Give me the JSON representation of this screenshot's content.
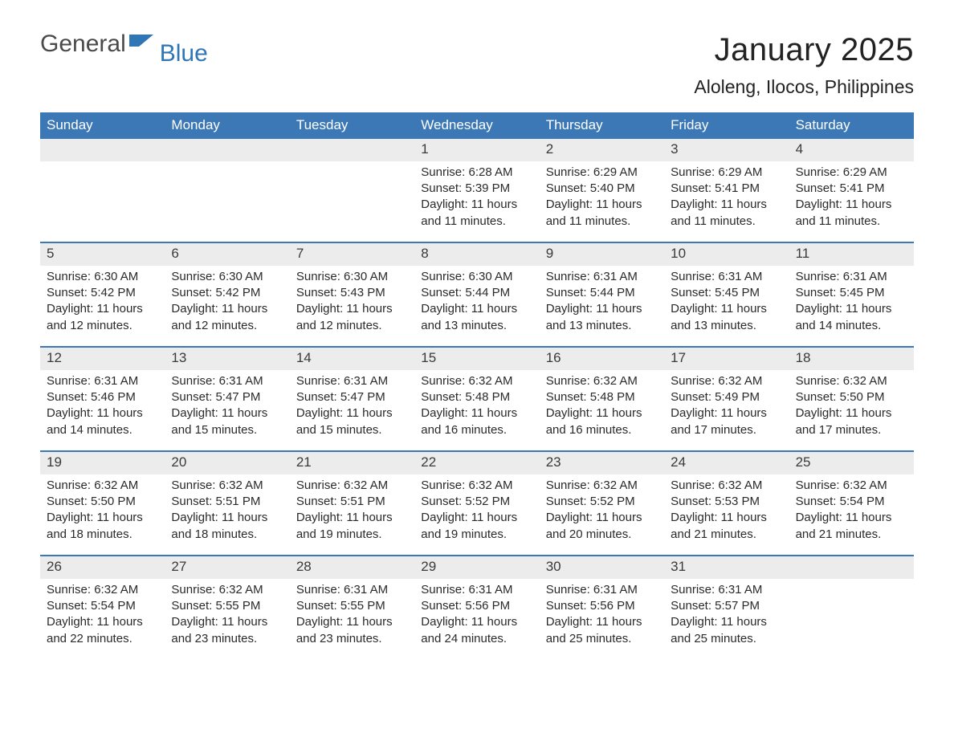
{
  "brand": {
    "word1": "General",
    "word2": "Blue",
    "flag_color": "#2f76b7"
  },
  "header": {
    "title": "January 2025",
    "location": "Aloleng, Ilocos, Philippines"
  },
  "colors": {
    "header_bg": "#3b78b5",
    "header_text": "#ffffff",
    "band_bg": "#ececec",
    "week_border": "#3b78b5",
    "body_text": "#2a2a2a",
    "page_bg": "#ffffff"
  },
  "typography": {
    "title_fontsize": 40,
    "location_fontsize": 23,
    "dow_fontsize": 17,
    "daynum_fontsize": 17,
    "body_fontsize": 15
  },
  "layout": {
    "columns": 7,
    "rows": 5
  },
  "days_of_week": [
    "Sunday",
    "Monday",
    "Tuesday",
    "Wednesday",
    "Thursday",
    "Friday",
    "Saturday"
  ],
  "weeks": [
    [
      {
        "n": "",
        "sr": "",
        "ss": "",
        "dl": ""
      },
      {
        "n": "",
        "sr": "",
        "ss": "",
        "dl": ""
      },
      {
        "n": "",
        "sr": "",
        "ss": "",
        "dl": ""
      },
      {
        "n": "1",
        "sr": "6:28 AM",
        "ss": "5:39 PM",
        "dl": "11 hours and 11 minutes."
      },
      {
        "n": "2",
        "sr": "6:29 AM",
        "ss": "5:40 PM",
        "dl": "11 hours and 11 minutes."
      },
      {
        "n": "3",
        "sr": "6:29 AM",
        "ss": "5:41 PM",
        "dl": "11 hours and 11 minutes."
      },
      {
        "n": "4",
        "sr": "6:29 AM",
        "ss": "5:41 PM",
        "dl": "11 hours and 11 minutes."
      }
    ],
    [
      {
        "n": "5",
        "sr": "6:30 AM",
        "ss": "5:42 PM",
        "dl": "11 hours and 12 minutes."
      },
      {
        "n": "6",
        "sr": "6:30 AM",
        "ss": "5:42 PM",
        "dl": "11 hours and 12 minutes."
      },
      {
        "n": "7",
        "sr": "6:30 AM",
        "ss": "5:43 PM",
        "dl": "11 hours and 12 minutes."
      },
      {
        "n": "8",
        "sr": "6:30 AM",
        "ss": "5:44 PM",
        "dl": "11 hours and 13 minutes."
      },
      {
        "n": "9",
        "sr": "6:31 AM",
        "ss": "5:44 PM",
        "dl": "11 hours and 13 minutes."
      },
      {
        "n": "10",
        "sr": "6:31 AM",
        "ss": "5:45 PM",
        "dl": "11 hours and 13 minutes."
      },
      {
        "n": "11",
        "sr": "6:31 AM",
        "ss": "5:45 PM",
        "dl": "11 hours and 14 minutes."
      }
    ],
    [
      {
        "n": "12",
        "sr": "6:31 AM",
        "ss": "5:46 PM",
        "dl": "11 hours and 14 minutes."
      },
      {
        "n": "13",
        "sr": "6:31 AM",
        "ss": "5:47 PM",
        "dl": "11 hours and 15 minutes."
      },
      {
        "n": "14",
        "sr": "6:31 AM",
        "ss": "5:47 PM",
        "dl": "11 hours and 15 minutes."
      },
      {
        "n": "15",
        "sr": "6:32 AM",
        "ss": "5:48 PM",
        "dl": "11 hours and 16 minutes."
      },
      {
        "n": "16",
        "sr": "6:32 AM",
        "ss": "5:48 PM",
        "dl": "11 hours and 16 minutes."
      },
      {
        "n": "17",
        "sr": "6:32 AM",
        "ss": "5:49 PM",
        "dl": "11 hours and 17 minutes."
      },
      {
        "n": "18",
        "sr": "6:32 AM",
        "ss": "5:50 PM",
        "dl": "11 hours and 17 minutes."
      }
    ],
    [
      {
        "n": "19",
        "sr": "6:32 AM",
        "ss": "5:50 PM",
        "dl": "11 hours and 18 minutes."
      },
      {
        "n": "20",
        "sr": "6:32 AM",
        "ss": "5:51 PM",
        "dl": "11 hours and 18 minutes."
      },
      {
        "n": "21",
        "sr": "6:32 AM",
        "ss": "5:51 PM",
        "dl": "11 hours and 19 minutes."
      },
      {
        "n": "22",
        "sr": "6:32 AM",
        "ss": "5:52 PM",
        "dl": "11 hours and 19 minutes."
      },
      {
        "n": "23",
        "sr": "6:32 AM",
        "ss": "5:52 PM",
        "dl": "11 hours and 20 minutes."
      },
      {
        "n": "24",
        "sr": "6:32 AM",
        "ss": "5:53 PM",
        "dl": "11 hours and 21 minutes."
      },
      {
        "n": "25",
        "sr": "6:32 AM",
        "ss": "5:54 PM",
        "dl": "11 hours and 21 minutes."
      }
    ],
    [
      {
        "n": "26",
        "sr": "6:32 AM",
        "ss": "5:54 PM",
        "dl": "11 hours and 22 minutes."
      },
      {
        "n": "27",
        "sr": "6:32 AM",
        "ss": "5:55 PM",
        "dl": "11 hours and 23 minutes."
      },
      {
        "n": "28",
        "sr": "6:31 AM",
        "ss": "5:55 PM",
        "dl": "11 hours and 23 minutes."
      },
      {
        "n": "29",
        "sr": "6:31 AM",
        "ss": "5:56 PM",
        "dl": "11 hours and 24 minutes."
      },
      {
        "n": "30",
        "sr": "6:31 AM",
        "ss": "5:56 PM",
        "dl": "11 hours and 25 minutes."
      },
      {
        "n": "31",
        "sr": "6:31 AM",
        "ss": "5:57 PM",
        "dl": "11 hours and 25 minutes."
      },
      {
        "n": "",
        "sr": "",
        "ss": "",
        "dl": ""
      }
    ]
  ],
  "labels": {
    "sunrise": "Sunrise:",
    "sunset": "Sunset:",
    "daylight": "Daylight:"
  }
}
